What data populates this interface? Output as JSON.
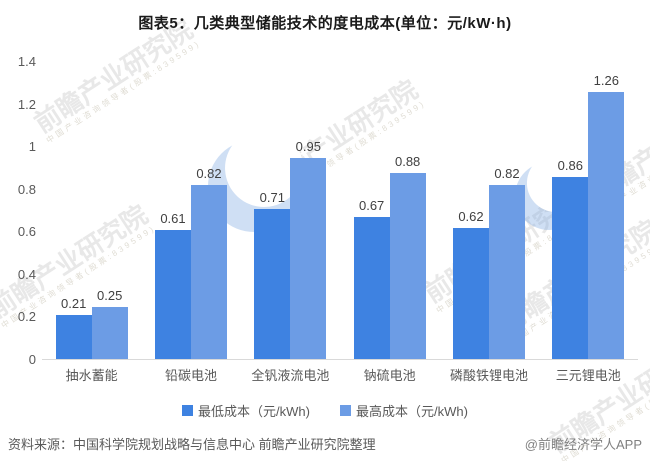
{
  "title": "图表5：几类典型储能技术的度电成本(单位：元/kW·h)",
  "chart_data": {
    "type": "bar",
    "categories": [
      "抽水蓄能",
      "铅碳电池",
      "全钒液流电池",
      "钠硫电池",
      "磷酸铁锂电池",
      "三元锂电池"
    ],
    "series": [
      {
        "name": "最低成本（元/kWh)",
        "color": "#3E82E1",
        "values": [
          0.21,
          0.61,
          0.71,
          0.67,
          0.62,
          0.86
        ]
      },
      {
        "name": "最高成本（元/kWh)",
        "color": "#6C9CE5",
        "values": [
          0.25,
          0.82,
          0.95,
          0.88,
          0.82,
          1.26
        ]
      }
    ],
    "value_labels": [
      "0.21",
      "0.25",
      "0.61",
      "0.82",
      "0.71",
      "0.95",
      "0.67",
      "0.88",
      "0.62",
      "0.82",
      "0.86",
      "1.26"
    ],
    "ylim": [
      0,
      1.4
    ],
    "y_ticks": [
      "0",
      "0.2",
      "0.4",
      "0.6",
      "0.8",
      "1",
      "1.2",
      "1.4"
    ],
    "grid": false,
    "legend_position": "bottom",
    "title": "图表5：几类典型储能技术的度电成本(单位：元/kW·h)"
  },
  "footer": {
    "source": "资料来源：中国科学院规划战略与信息中心 前瞻产业研究院整理",
    "credit": "@前瞻经济学人APP"
  },
  "watermark": {
    "brand_text": "前瞻产业研究院",
    "sub_text": "中国产业咨询领导者(股票:839599)",
    "logo_icon": "qianzhan-swoosh-logo"
  },
  "colors": {
    "series_min": "#3E82E1",
    "series_max": "#6C9CE5",
    "axis_line": "#D9D9D9",
    "title_text": "#1A1A1A",
    "tick_text": "#595959"
  }
}
